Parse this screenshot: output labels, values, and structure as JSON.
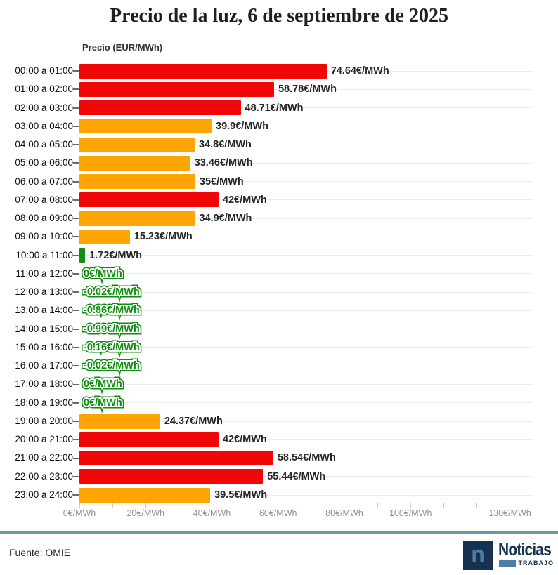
{
  "title": "Precio de la luz, 6 de septiembre de 2025",
  "axis_title": "Precio (EUR/MWh)",
  "source": "Fuente: OMIE",
  "logo": {
    "letter": "n",
    "brand": "Noticias",
    "sub": "TRABAJO"
  },
  "colors": {
    "red": "#f20707",
    "orange": "#ffa502",
    "green": "#128c12",
    "separator": "#7195a5",
    "navy": "#16324f",
    "steel": "#4d7ea8",
    "gridline": "#ececec",
    "axis_text": "#939393"
  },
  "chart_data": {
    "type": "bar",
    "orientation": "horizontal",
    "title": "Precio de la luz, 6 de septiembre de 2025",
    "xlabel": "Precio (EUR/MWh)",
    "xlim": [
      0,
      130
    ],
    "grid": "per-row horizontal lines",
    "categories": [
      "00:00 a 01:00",
      "01:00 a 02:00",
      "02:00 a 03:00",
      "03:00 a 04:00",
      "04:00 a 05:00",
      "05:00 a 06:00",
      "06:00 a 07:00",
      "07:00 a 08:00",
      "08:00 a 09:00",
      "09:00 a 10:00",
      "10:00 a 11:00",
      "11:00 a 12:00",
      "12:00 a 13:00",
      "13:00 a 14:00",
      "14:00 a 15:00",
      "15:00 a 16:00",
      "16:00 a 17:00",
      "17:00 a 18:00",
      "18:00 a 19:00",
      "19:00 a 20:00",
      "20:00 a 21:00",
      "21:00 a 22:00",
      "22:00 a 23:00",
      "23:00 a 24:00"
    ],
    "values": [
      74.64,
      58.78,
      48.71,
      39.9,
      34.8,
      33.46,
      35,
      42,
      34.9,
      15.23,
      1.72,
      0,
      -0.02,
      -0.86,
      -0.99,
      -0.16,
      -0.02,
      0,
      0,
      24.37,
      42,
      58.54,
      55.44,
      39.5
    ],
    "value_labels": [
      "74.64€/MWh",
      "58.78€/MWh",
      "48.71€/MWh",
      "39.9€/MWh",
      "34.8€/MWh",
      "33.46€/MWh",
      "35€/MWh",
      "42€/MWh",
      "34.9€/MWh",
      "15.23€/MWh",
      "1.72€/MWh",
      "0€/MWh",
      "-0.02€/MWh",
      "-0.86€/MWh",
      "-0.99€/MWh",
      "-0.16€/MWh",
      "-0.02€/MWh",
      "0€/MWh",
      "0€/MWh",
      "24.37€/MWh",
      "42€/MWh",
      "58.54€/MWh",
      "55.44€/MWh",
      "39.5€/MWh"
    ],
    "bar_colors": [
      "red",
      "red",
      "red",
      "orange",
      "orange",
      "orange",
      "orange",
      "red",
      "orange",
      "orange",
      "green",
      "green",
      "green",
      "green",
      "green",
      "green",
      "green",
      "green",
      "green",
      "orange",
      "red",
      "red",
      "red",
      "orange"
    ],
    "x_axis": {
      "minor_tick_step": 10,
      "labeled_ticks": [
        {
          "v": 0,
          "label": "0€/MWh"
        },
        {
          "v": 20,
          "label": "20€/MWh"
        },
        {
          "v": 40,
          "label": "40€/MWh"
        },
        {
          "v": 60,
          "label": "60€/MWh"
        },
        {
          "v": 80,
          "label": "80€/MWh"
        },
        {
          "v": 100,
          "label": "100€/MWh"
        },
        {
          "v": 130,
          "label": "130€/MWh"
        }
      ]
    }
  }
}
